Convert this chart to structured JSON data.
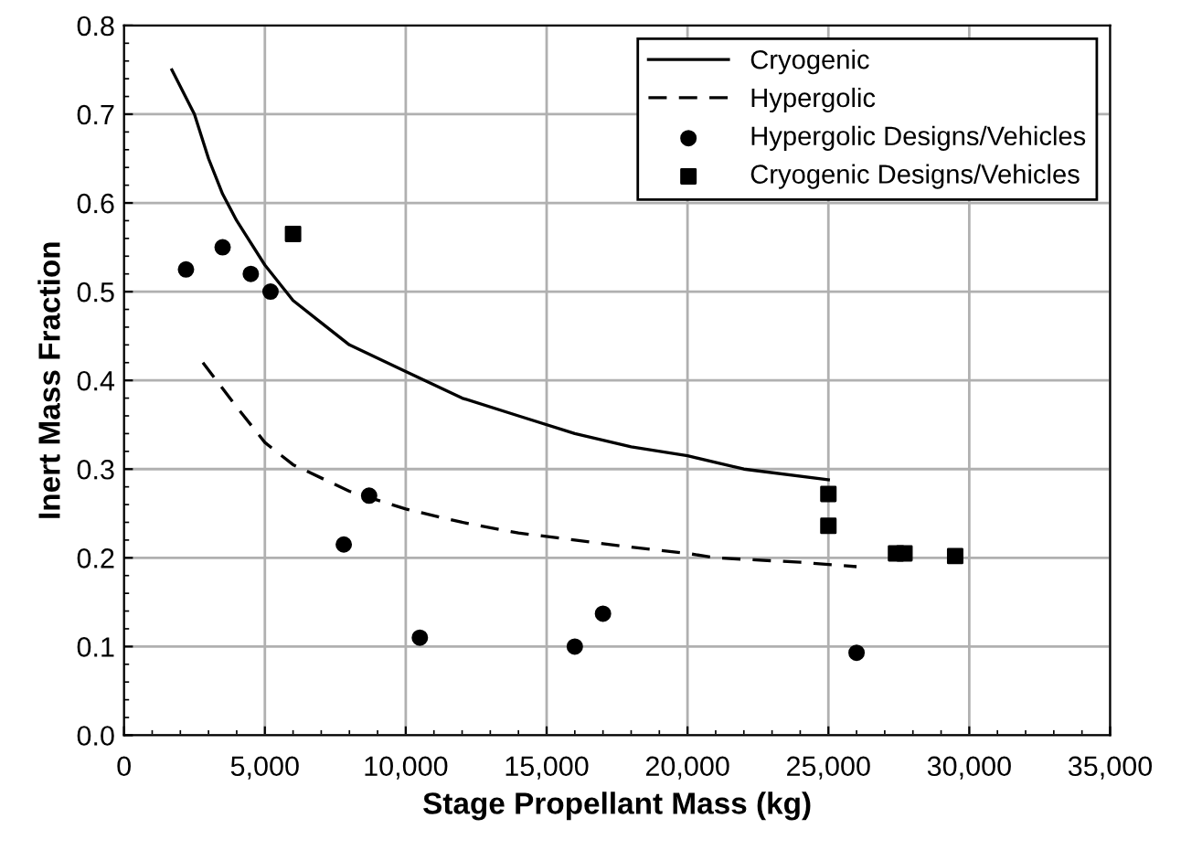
{
  "chart_data": {
    "type": "line",
    "xlabel": "Stage Propellant Mass (kg)",
    "ylabel": "Inert Mass Fraction",
    "xlim": [
      0,
      35000
    ],
    "xticks": [
      {
        "value": 0,
        "label": "0"
      },
      {
        "value": 5000,
        "label": "5,000"
      },
      {
        "value": 10000,
        "label": "10,000"
      },
      {
        "value": 15000,
        "label": "15,000"
      },
      {
        "value": 20000,
        "label": "20,000"
      },
      {
        "value": 25000,
        "label": "25,000"
      },
      {
        "value": 30000,
        "label": "30,000"
      },
      {
        "value": 35000,
        "label": "35,000"
      }
    ],
    "ylim": [
      0,
      0.8
    ],
    "yticks": [
      {
        "value": 0,
        "label": "0.0"
      },
      {
        "value": 0.1,
        "label": "0.1"
      },
      {
        "value": 0.2,
        "label": "0.2"
      },
      {
        "value": 0.3,
        "label": "0.3"
      },
      {
        "value": 0.4,
        "label": "0.4"
      },
      {
        "value": 0.5,
        "label": "0.5"
      },
      {
        "value": 0.6,
        "label": "0.6"
      },
      {
        "value": 0.7,
        "label": "0.7"
      },
      {
        "value": 0.8,
        "label": "0.8"
      }
    ],
    "grid": true,
    "legend": "top right",
    "series": [
      {
        "name": "Cryogenic",
        "line_style": "solid",
        "marker": "none",
        "color": "#000000",
        "x": [
          1700,
          2500,
          3000,
          3500,
          4000,
          5000,
          6000,
          7000,
          8000,
          10000,
          12000,
          14000,
          16000,
          18000,
          20000,
          22000,
          25000
        ],
        "values": [
          0.75,
          0.7,
          0.65,
          0.61,
          0.58,
          0.53,
          0.49,
          0.465,
          0.44,
          0.41,
          0.38,
          0.36,
          0.34,
          0.325,
          0.315,
          0.3,
          0.288
        ]
      },
      {
        "name": "Hypergolic",
        "line_style": "dashed",
        "marker": "none",
        "color": "#000000",
        "x": [
          2800,
          4000,
          5000,
          6000,
          8000,
          10000,
          12000,
          14000,
          16000,
          18000,
          20000,
          21000,
          24000,
          26000
        ],
        "values": [
          0.42,
          0.37,
          0.33,
          0.305,
          0.275,
          0.255,
          0.24,
          0.228,
          0.22,
          0.212,
          0.205,
          0.2,
          0.195,
          0.19
        ]
      },
      {
        "name": "Hypergolic Designs/Vehicles",
        "type": "scatter",
        "marker": "circle",
        "color": "#000000",
        "x": [
          2200,
          3500,
          4500,
          5200,
          7800,
          8700,
          10500,
          16000,
          17000,
          26000
        ],
        "values": [
          0.525,
          0.55,
          0.52,
          0.5,
          0.215,
          0.27,
          0.11,
          0.1,
          0.137,
          0.093
        ]
      },
      {
        "name": "Cryogenic Designs/Vehicles",
        "type": "scatter",
        "marker": "square",
        "color": "#000000",
        "x": [
          6000,
          25000,
          25000,
          27400,
          27700,
          29500
        ],
        "values": [
          0.565,
          0.272,
          0.236,
          0.205,
          0.205,
          0.202
        ]
      }
    ]
  }
}
